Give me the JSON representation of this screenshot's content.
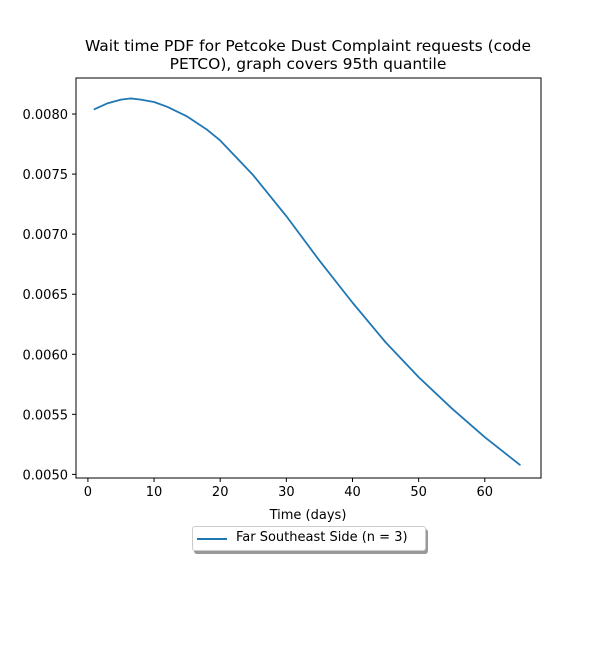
{
  "chart_data": {
    "type": "line",
    "title": "Wait time PDF for Petcoke Dust Complaint  requests (code PETCO), graph covers 95th quantile",
    "title_lines": [
      "Wait time PDF for Petcoke Dust Complaint  requests (code",
      "PETCO), graph covers 95th quantile"
    ],
    "xlabel": "Time (days)",
    "ylabel": "",
    "xlim": [
      -1.8,
      68.5
    ],
    "ylim": [
      0.00497,
      0.0083
    ],
    "x_ticks": [
      0,
      10,
      20,
      30,
      40,
      50,
      60
    ],
    "x_tick_labels": [
      "0",
      "10",
      "20",
      "30",
      "40",
      "50",
      "60"
    ],
    "y_ticks": [
      0.005,
      0.0055,
      0.006,
      0.0065,
      0.007,
      0.0075,
      0.008
    ],
    "y_tick_labels": [
      "0.0050",
      "0.0055",
      "0.0060",
      "0.0065",
      "0.0070",
      "0.0075",
      "0.0080"
    ],
    "grid": false,
    "legend_position": "below-center",
    "series": [
      {
        "name": "Far Southeast Side (n = 3)",
        "color": "#1f77b4",
        "x": [
          1,
          3,
          5,
          6.5,
          8,
          10,
          12,
          15,
          18,
          20,
          25,
          30,
          35,
          40,
          45,
          50,
          55,
          60,
          65.3
        ],
        "y": [
          0.00804,
          0.00809,
          0.00812,
          0.00813,
          0.00812,
          0.0081,
          0.00806,
          0.00798,
          0.00787,
          0.00778,
          0.00749,
          0.00715,
          0.00678,
          0.00643,
          0.0061,
          0.00581,
          0.00555,
          0.00531,
          0.00508
        ]
      }
    ]
  }
}
